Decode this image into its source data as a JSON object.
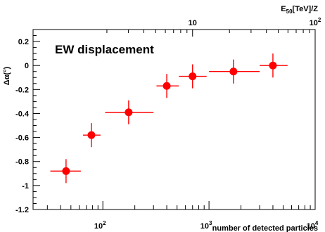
{
  "chart_data": {
    "type": "scatter",
    "title": "EW displacement",
    "xlabel": "number of detected particles",
    "ylabel": "Δα(°)",
    "x_scale": "log",
    "xlim": [
      22,
      10000
    ],
    "ylim": [
      -1.2,
      0.3
    ],
    "y_ticks": [
      0.2,
      0,
      -0.2,
      -0.4,
      -0.6,
      -0.8,
      -1,
      -1.2
    ],
    "y_tick_labels": [
      "0.2",
      "0",
      "-0.2",
      "-0.4",
      "-0.6",
      "-0.8",
      "-1",
      "-1.2"
    ],
    "x_ticks": [
      {
        "value": 100,
        "base": "10",
        "exp": "2"
      },
      {
        "value": 1000,
        "base": "10",
        "exp": "3"
      },
      {
        "value": 10000,
        "base": "10",
        "exp": "4"
      }
    ],
    "top_axis": {
      "label_main": "E",
      "label_sub": "50",
      "label_rest": "[TeV]/Z",
      "ticks": [
        {
          "value": 10,
          "label": "10",
          "x_at": 700
        },
        {
          "value": 100,
          "label": "10",
          "exp": "2",
          "x_at": 10000
        }
      ]
    },
    "grid": false,
    "points": [
      {
        "x": 45,
        "y": -0.88,
        "x_lo": 32,
        "x_hi": 62,
        "y_err": 0.1
      },
      {
        "x": 78,
        "y": -0.58,
        "x_lo": 65,
        "x_hi": 95,
        "y_err": 0.1
      },
      {
        "x": 175,
        "y": -0.39,
        "x_lo": 105,
        "x_hi": 300,
        "y_err": 0.1
      },
      {
        "x": 400,
        "y": -0.17,
        "x_lo": 320,
        "x_hi": 520,
        "y_err": 0.1
      },
      {
        "x": 700,
        "y": -0.09,
        "x_lo": 520,
        "x_hi": 950,
        "y_err": 0.1
      },
      {
        "x": 1700,
        "y": -0.05,
        "x_lo": 1000,
        "x_hi": 3000,
        "y_err": 0.1
      },
      {
        "x": 4000,
        "y": 0.0,
        "x_lo": 3000,
        "x_hi": 5500,
        "y_err": 0.1
      }
    ],
    "marker_color": "#ff0000"
  }
}
